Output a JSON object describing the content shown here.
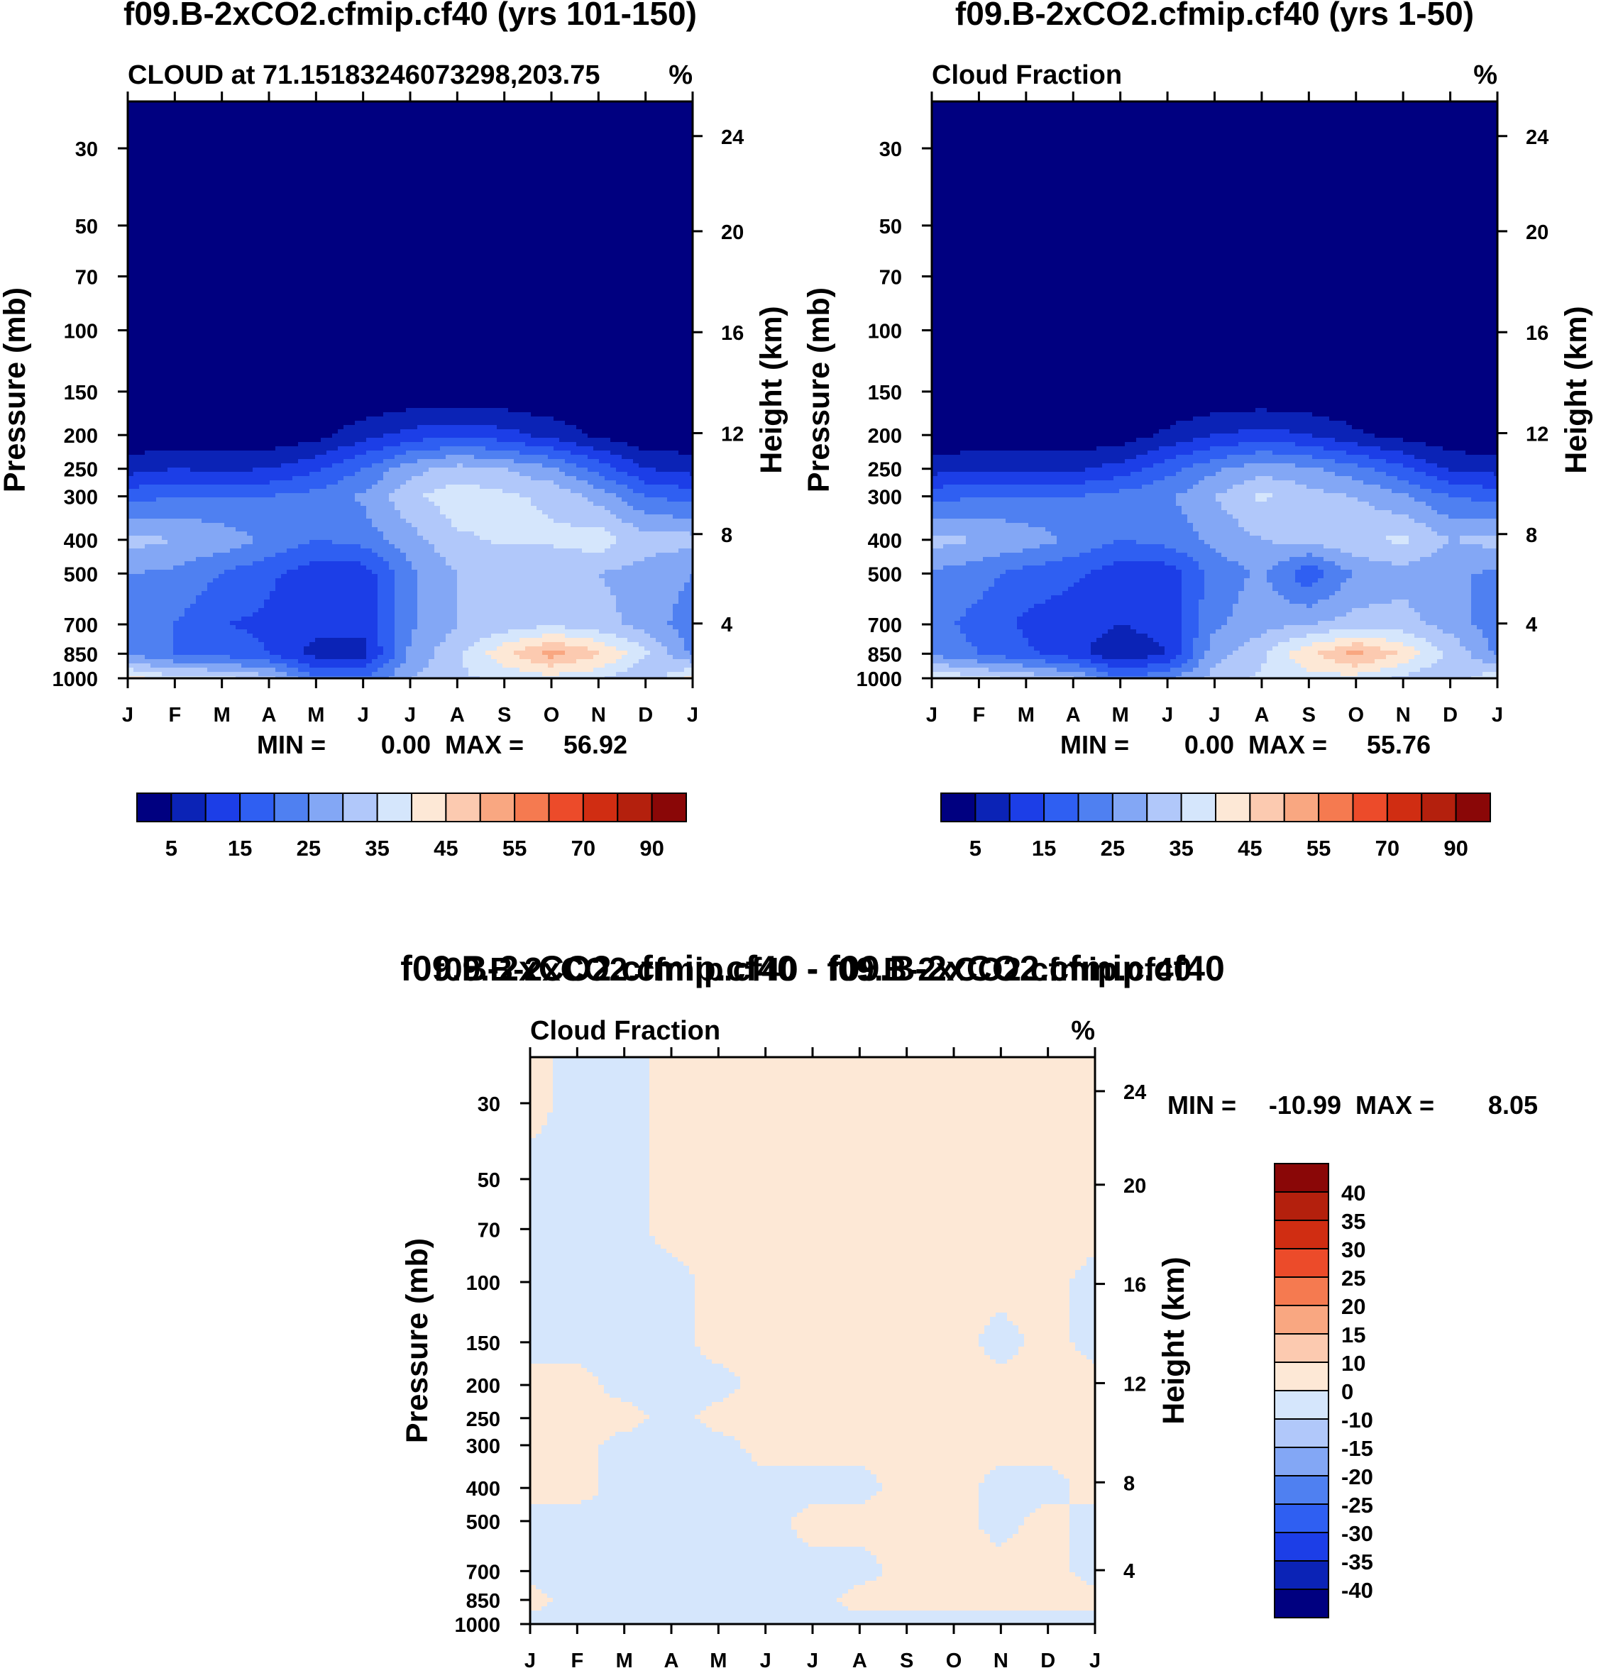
{
  "chart_data": [
    {
      "type": "heatmap",
      "title": "f09.B-2xCO2.cfmip.cf40 (yrs 101-150)",
      "subtitle_left": "CLOUD at 71.15183246073298,203.75",
      "subtitle_right": "%",
      "ylabel": "Pressure (mb)",
      "ylabel_right": "Height (km)",
      "x_tick_labels": [
        "J",
        "F",
        "M",
        "A",
        "M",
        "J",
        "J",
        "A",
        "S",
        "O",
        "N",
        "D",
        "J"
      ],
      "y_ticks": [
        30,
        50,
        70,
        100,
        150,
        200,
        250,
        300,
        400,
        500,
        700,
        850,
        1000
      ],
      "y_tick_labels": [
        "30",
        "50",
        "70",
        "100",
        "150",
        "200",
        "250",
        "300",
        "400",
        "500",
        "700",
        "850",
        "1000"
      ],
      "height_ticks_km": [
        "24",
        "20",
        "16",
        "12",
        "8",
        "4"
      ],
      "ylim": [
        22,
        1000
      ],
      "stats_min_label": "MIN =",
      "stats_min_value": "0.00",
      "stats_max_label": "MAX =",
      "stats_max_value": "56.92",
      "levels": [
        5,
        10,
        15,
        20,
        25,
        30,
        35,
        40,
        45,
        50,
        55,
        60,
        70,
        80,
        90
      ],
      "level_colors": [
        "#000080",
        "#0b23b6",
        "#1c3ee7",
        "#2f5ff2",
        "#4f80f1",
        "#83a7f5",
        "#b1c8fa",
        "#d5e6fc",
        "#fde8d6",
        "#fccab0",
        "#f9a781",
        "#f57a50",
        "#ec4b2a",
        "#d02d12",
        "#b4200d",
        "#8a0707"
      ],
      "colorbar_labels": [
        "5",
        "15",
        "25",
        "35",
        "45",
        "55",
        "70",
        "90"
      ],
      "months_x": [
        0,
        1,
        2,
        3,
        4,
        5,
        6,
        7,
        8,
        9,
        10,
        11,
        12
      ],
      "pressure_levels": [
        30,
        50,
        70,
        100,
        150,
        200,
        250,
        300,
        400,
        500,
        700,
        850,
        1000
      ],
      "values": [
        [
          0,
          0,
          0,
          0,
          0,
          0,
          0,
          0,
          0,
          0,
          0,
          0,
          0
        ],
        [
          0,
          0,
          0,
          0,
          0,
          0,
          0,
          0,
          0,
          0,
          0,
          0,
          0
        ],
        [
          0,
          0,
          0,
          0,
          0,
          0,
          0,
          0,
          0,
          0,
          0,
          0,
          0
        ],
        [
          0,
          0,
          0,
          0,
          0,
          0,
          0,
          0,
          0,
          0,
          0,
          0,
          0
        ],
        [
          0,
          0,
          0,
          0,
          0,
          0,
          0,
          0,
          0,
          0,
          0,
          0,
          0
        ],
        [
          1,
          1,
          1,
          1,
          3,
          8,
          12,
          14,
          12,
          8,
          4,
          1,
          1
        ],
        [
          8,
          10,
          9,
          10,
          14,
          20,
          28,
          32,
          30,
          26,
          18,
          10,
          8
        ],
        [
          18,
          20,
          20,
          20,
          22,
          26,
          34,
          38,
          36,
          34,
          28,
          20,
          18
        ],
        [
          32,
          30,
          28,
          24,
          20,
          22,
          28,
          34,
          36,
          36,
          38,
          32,
          32
        ],
        [
          25,
          24,
          20,
          16,
          12,
          12,
          24,
          30,
          30,
          30,
          30,
          28,
          25
        ],
        [
          22,
          20,
          15,
          14,
          12,
          12,
          24,
          30,
          32,
          34,
          32,
          28,
          22
        ],
        [
          24,
          20,
          18,
          15,
          8,
          8,
          26,
          34,
          44,
          52,
          46,
          36,
          24
        ],
        [
          42,
          36,
          36,
          32,
          20,
          20,
          30,
          34,
          36,
          38,
          36,
          30,
          42
        ]
      ]
    },
    {
      "type": "heatmap",
      "title": "f09.B-2xCO2.cfmip.cf40 (yrs 1-50)",
      "subtitle_left": "Cloud Fraction",
      "subtitle_right": "%",
      "ylabel": "Pressure (mb)",
      "ylabel_right": "Height (km)",
      "x_tick_labels": [
        "J",
        "F",
        "M",
        "A",
        "M",
        "J",
        "J",
        "A",
        "S",
        "O",
        "N",
        "D",
        "J"
      ],
      "y_ticks": [
        30,
        50,
        70,
        100,
        150,
        200,
        250,
        300,
        400,
        500,
        700,
        850,
        1000
      ],
      "y_tick_labels": [
        "30",
        "50",
        "70",
        "100",
        "150",
        "200",
        "250",
        "300",
        "400",
        "500",
        "700",
        "850",
        "1000"
      ],
      "height_ticks_km": [
        "24",
        "20",
        "16",
        "12",
        "8",
        "4"
      ],
      "ylim": [
        22,
        1000
      ],
      "stats_min_label": "MIN =",
      "stats_min_value": "0.00",
      "stats_max_label": "MAX =",
      "stats_max_value": "55.76",
      "levels": [
        5,
        10,
        15,
        20,
        25,
        30,
        35,
        40,
        45,
        50,
        55,
        60,
        70,
        80,
        90
      ],
      "level_colors": [
        "#000080",
        "#0b23b6",
        "#1c3ee7",
        "#2f5ff2",
        "#4f80f1",
        "#83a7f5",
        "#b1c8fa",
        "#d5e6fc",
        "#fde8d6",
        "#fccab0",
        "#f9a781",
        "#f57a50",
        "#ec4b2a",
        "#d02d12",
        "#b4200d",
        "#8a0707"
      ],
      "colorbar_labels": [
        "5",
        "15",
        "25",
        "35",
        "45",
        "55",
        "70",
        "90"
      ],
      "months_x": [
        0,
        1,
        2,
        3,
        4,
        5,
        6,
        7,
        8,
        9,
        10,
        11,
        12
      ],
      "pressure_levels": [
        30,
        50,
        70,
        100,
        150,
        200,
        250,
        300,
        400,
        500,
        700,
        850,
        1000
      ],
      "values": [
        [
          0,
          0,
          0,
          0,
          0,
          0,
          0,
          0,
          0,
          0,
          0,
          0,
          0
        ],
        [
          0,
          0,
          0,
          0,
          0,
          0,
          0,
          0,
          0,
          0,
          0,
          0,
          0
        ],
        [
          0,
          0,
          0,
          0,
          0,
          0,
          0,
          0,
          0,
          0,
          0,
          0,
          0
        ],
        [
          0,
          0,
          0,
          0,
          0,
          0,
          0,
          0,
          0,
          0,
          0,
          0,
          0
        ],
        [
          0,
          0,
          0,
          0,
          0,
          0,
          0,
          0,
          0,
          0,
          0,
          0,
          0
        ],
        [
          1,
          1,
          1,
          1,
          2,
          6,
          10,
          12,
          10,
          6,
          3,
          1,
          1
        ],
        [
          8,
          9,
          9,
          9,
          12,
          18,
          24,
          28,
          26,
          22,
          16,
          9,
          8
        ],
        [
          18,
          20,
          20,
          20,
          22,
          24,
          30,
          36,
          32,
          30,
          26,
          20,
          18
        ],
        [
          32,
          30,
          28,
          24,
          20,
          22,
          26,
          30,
          32,
          34,
          36,
          30,
          32
        ],
        [
          24,
          22,
          18,
          16,
          12,
          12,
          22,
          26,
          16,
          26,
          28,
          26,
          24
        ],
        [
          22,
          18,
          14,
          12,
          10,
          12,
          24,
          28,
          30,
          32,
          32,
          28,
          22
        ],
        [
          24,
          20,
          16,
          12,
          6,
          10,
          28,
          34,
          44,
          52,
          44,
          34,
          24
        ],
        [
          40,
          36,
          34,
          30,
          20,
          24,
          32,
          36,
          38,
          38,
          34,
          30,
          40
        ]
      ]
    },
    {
      "type": "heatmap",
      "title": "f09.B-2xCO2.cfmip.cf40 - f09.B-2xCO2.cfmip.cf40",
      "subtitle_left": "Cloud Fraction",
      "subtitle_right": "%",
      "ylabel": "Pressure (mb)",
      "ylabel_right": "Height (km)",
      "x_tick_labels": [
        "J",
        "F",
        "M",
        "A",
        "M",
        "J",
        "J",
        "A",
        "S",
        "O",
        "N",
        "D",
        "J"
      ],
      "y_ticks": [
        30,
        50,
        70,
        100,
        150,
        200,
        250,
        300,
        400,
        500,
        700,
        850,
        1000
      ],
      "y_tick_labels": [
        "30",
        "50",
        "70",
        "100",
        "150",
        "200",
        "250",
        "300",
        "400",
        "500",
        "700",
        "850",
        "1000"
      ],
      "height_ticks_km": [
        "24",
        "20",
        "16",
        "12",
        "8",
        "4"
      ],
      "ylim": [
        22,
        1000
      ],
      "stats_min_label": "MIN =",
      "stats_min_value": "-10.99",
      "stats_max_label": "MAX =",
      "stats_max_value": "8.05",
      "levels": [
        -40,
        -35,
        -30,
        -25,
        -20,
        -15,
        -10,
        0,
        10,
        15,
        20,
        25,
        30,
        35,
        40
      ],
      "level_colors": [
        "#000080",
        "#0b23b6",
        "#1c3ee7",
        "#2f5ff2",
        "#4f80f1",
        "#83a7f5",
        "#b1c8fa",
        "#d5e6fc",
        "#fde8d6",
        "#fccab0",
        "#f9a781",
        "#f57a50",
        "#ec4b2a",
        "#d02d12",
        "#b4200d",
        "#8a0707"
      ],
      "colorbar_labels": [
        "40",
        "35",
        "30",
        "25",
        "20",
        "15",
        "10",
        "0",
        "-10",
        "-15",
        "-20",
        "-25",
        "-30",
        "-35",
        "-40"
      ],
      "regions_description_values_sign": "positive = peach (0 to 10), negative = light blue (-10 to 0)",
      "months_x": [
        0,
        1,
        2,
        3,
        4,
        5,
        6,
        7,
        8,
        9,
        10,
        11,
        12
      ],
      "pressure_levels": [
        22,
        30,
        50,
        70,
        100,
        150,
        200,
        250,
        300,
        400,
        500,
        700,
        850,
        1000
      ],
      "values": [
        [
          1,
          -1,
          -1,
          1,
          1,
          1,
          1,
          1,
          1,
          1,
          1,
          1,
          1
        ],
        [
          1,
          -1,
          -1,
          1,
          1,
          1,
          1,
          1,
          1,
          1,
          1,
          1,
          1
        ],
        [
          -1,
          -1,
          -1,
          1,
          1,
          1,
          1,
          1,
          1,
          1,
          1,
          1,
          1
        ],
        [
          -1,
          -1,
          -1,
          1,
          1,
          1,
          1,
          1,
          1,
          1,
          1,
          1,
          1
        ],
        [
          -1,
          -1,
          -1,
          -1,
          1,
          1,
          1,
          1,
          1,
          1,
          1,
          1,
          -1
        ],
        [
          -1,
          -1,
          -1,
          -1,
          1,
          1,
          1,
          1,
          1,
          1,
          -1,
          1,
          -1
        ],
        [
          1,
          1,
          -1,
          -1,
          -1,
          1,
          1,
          1,
          1,
          1,
          1,
          1,
          1
        ],
        [
          1,
          1,
          1,
          -1,
          1,
          1,
          1,
          1,
          1,
          1,
          1,
          1,
          1
        ],
        [
          1,
          1,
          -1,
          -1,
          -1,
          1,
          1,
          1,
          1,
          1,
          1,
          1,
          1
        ],
        [
          1,
          1,
          -1,
          -1,
          -1,
          -1,
          -1,
          -1,
          1,
          1,
          -1,
          -1,
          1
        ],
        [
          -1,
          -1,
          -1,
          -1,
          -1,
          -1,
          1,
          1,
          1,
          1,
          -1,
          1,
          -1
        ],
        [
          -1,
          -1,
          -1,
          -1,
          -1,
          -1,
          -1,
          -1,
          1,
          1,
          1,
          1,
          -1
        ],
        [
          1,
          -1,
          -1,
          -1,
          -1,
          -1,
          -1,
          1,
          1,
          1,
          1,
          1,
          1
        ],
        [
          -1,
          -1,
          -1,
          -1,
          -1,
          -1,
          -1,
          -1,
          -1,
          -1,
          -1,
          -1,
          -1
        ]
      ]
    }
  ]
}
